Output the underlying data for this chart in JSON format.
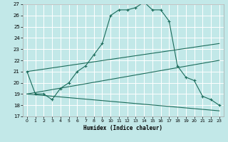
{
  "xlabel": "Humidex (Indice chaleur)",
  "bg_color": "#c2e8e8",
  "grid_color": "#ffffff",
  "line_color": "#1a6b5a",
  "xlim": [
    -0.5,
    23.5
  ],
  "ylim": [
    17,
    27
  ],
  "xticks": [
    0,
    1,
    2,
    3,
    4,
    5,
    6,
    7,
    8,
    9,
    10,
    11,
    12,
    13,
    14,
    15,
    16,
    17,
    18,
    19,
    20,
    21,
    22,
    23
  ],
  "yticks": [
    17,
    18,
    19,
    20,
    21,
    22,
    23,
    24,
    25,
    26,
    27
  ],
  "main_line": {
    "x": [
      0,
      1,
      2,
      3,
      4,
      5,
      6,
      7,
      8,
      9,
      10,
      11,
      12,
      13,
      14,
      15,
      16,
      17,
      18,
      19,
      20,
      21,
      22,
      23
    ],
    "y": [
      21.0,
      19.0,
      19.0,
      18.5,
      19.5,
      20.0,
      21.0,
      21.5,
      22.5,
      23.5,
      26.0,
      26.5,
      26.5,
      26.7,
      27.2,
      26.5,
      26.5,
      25.5,
      21.5,
      20.5,
      20.2,
      18.8,
      18.5,
      18.0
    ]
  },
  "upper_line": {
    "x": [
      0,
      23
    ],
    "y": [
      21.0,
      23.5
    ]
  },
  "lower_line": {
    "x": [
      0,
      23
    ],
    "y": [
      19.0,
      17.5
    ]
  },
  "mid_line": {
    "x": [
      0,
      23
    ],
    "y": [
      19.0,
      22.0
    ]
  }
}
